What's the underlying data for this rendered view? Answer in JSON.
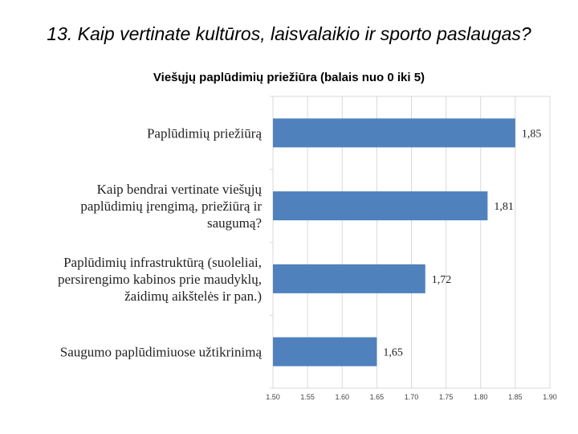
{
  "title": "13. Kaip vertinate kultūros, laisvalaikio ir sporto paslaugas?",
  "subtitle": "Viešųjų paplūdimių priežiūra (balais nuo 0 iki 5)",
  "chart_data": {
    "type": "bar",
    "orientation": "horizontal",
    "categories": [
      [
        "Paplūdimių priežiūrą"
      ],
      [
        "Kaip bendrai vertinate viešųjų",
        "paplūdimių įrengimą, priežiūrą ir",
        "saugumą?"
      ],
      [
        "Paplūdimių infrastruktūrą (suoleliai,",
        "persirengimo kabinos prie maudyklų,",
        "žaidimų aikštelės ir pan.)"
      ],
      [
        "Saugumo paplūdimiuose užtikrinimą"
      ]
    ],
    "values": [
      1.85,
      1.81,
      1.72,
      1.65
    ],
    "data_labels": [
      "1,85",
      "1,81",
      "1,72",
      "1,65"
    ],
    "xlim": [
      1.5,
      1.9
    ],
    "xticks": [
      "1.50",
      "1.55",
      "1.60",
      "1.65",
      "1.70",
      "1.75",
      "1.80",
      "1.85",
      "1.90"
    ],
    "grid": true,
    "bar_color": "#4f81bd",
    "grid_color": "#d9d9d9"
  }
}
